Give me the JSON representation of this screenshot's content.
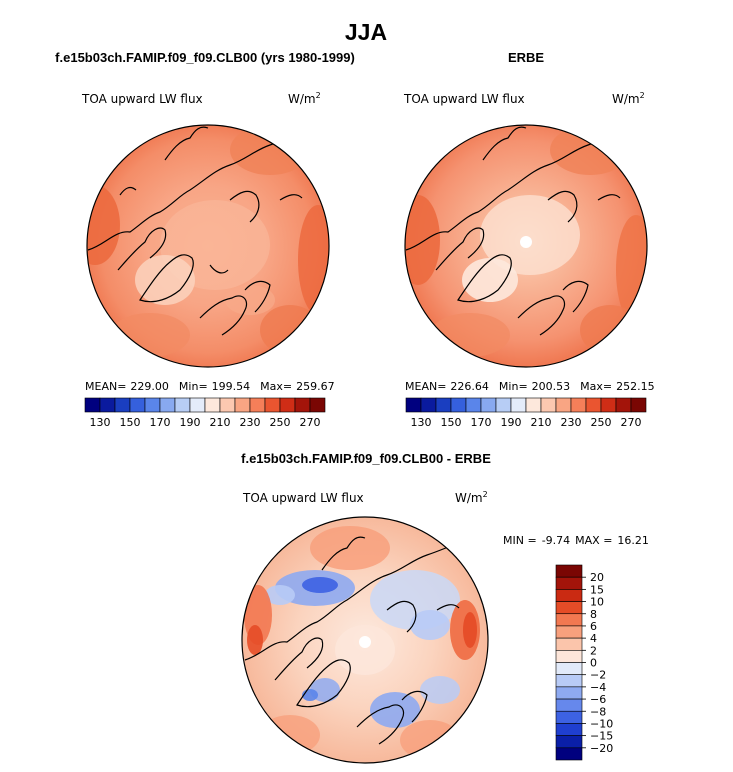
{
  "page_title": "JJA",
  "chart_data": [
    {
      "type": "heatmap",
      "projection": "north-polar-stereographic",
      "title": "f.e15b03ch.FAMIP.f09_f09.CLB00 (yrs 1980-1999)",
      "variable": "TOA upward LW flux",
      "units": "W/m",
      "units_exp": "2",
      "stats": {
        "mean_label": "MEAN=",
        "mean": "229.00",
        "min_label": "Min=",
        "min": "199.54",
        "max_label": "Max=",
        "max": "259.67"
      },
      "colorbar": {
        "orientation": "horizontal",
        "levels": [
          130,
          140,
          150,
          160,
          170,
          180,
          190,
          200,
          210,
          220,
          230,
          240,
          250,
          260,
          270
        ],
        "tick_labels": [
          "130",
          "150",
          "170",
          "190",
          "210",
          "230",
          "250",
          "270"
        ],
        "colors": [
          "#00007f",
          "#0a1a9e",
          "#1a3ec0",
          "#3560dd",
          "#5a85ea",
          "#88a9f0",
          "#b7cdf5",
          "#e4ecfa",
          "#fde8dc",
          "#fcc8b0",
          "#f9a583",
          "#f57f59",
          "#ea5530",
          "#cf2d16",
          "#a3140a",
          "#7a0603"
        ]
      },
      "field_summary": {
        "dominant_range": [
          220,
          250
        ],
        "pole_value": 215,
        "greenland_value": 205,
        "eurasia_pacific_value": 250
      }
    },
    {
      "type": "heatmap",
      "projection": "north-polar-stereographic",
      "title": "ERBE",
      "variable": "TOA upward LW flux",
      "units": "W/m",
      "units_exp": "2",
      "stats": {
        "mean_label": "MEAN=",
        "mean": "226.64",
        "min_label": "Min=",
        "min": "200.53",
        "max_label": "Max=",
        "max": "252.15"
      },
      "colorbar": {
        "orientation": "horizontal",
        "levels": [
          130,
          140,
          150,
          160,
          170,
          180,
          190,
          200,
          210,
          220,
          230,
          240,
          250,
          260,
          270
        ],
        "tick_labels": [
          "130",
          "150",
          "170",
          "190",
          "210",
          "230",
          "250",
          "270"
        ],
        "colors": [
          "#00007f",
          "#0a1a9e",
          "#1a3ec0",
          "#3560dd",
          "#5a85ea",
          "#88a9f0",
          "#b7cdf5",
          "#e4ecfa",
          "#fde8dc",
          "#fcc8b0",
          "#f9a583",
          "#f57f59",
          "#ea5530",
          "#cf2d16",
          "#a3140a",
          "#7a0603"
        ]
      },
      "field_summary": {
        "dominant_range": [
          220,
          250
        ],
        "pole_value": 210,
        "greenland_value": 205,
        "missing_pole": true
      }
    },
    {
      "type": "heatmap",
      "projection": "north-polar-stereographic",
      "title": "f.e15b03ch.FAMIP.f09_f09.CLB00 - ERBE",
      "variable": "TOA upward LW flux",
      "units": "W/m",
      "units_exp": "2",
      "stats": {
        "min_label": "MIN =",
        "min": "-9.74",
        "max_label": "MAX =",
        "max": "16.21"
      },
      "colorbar": {
        "orientation": "vertical",
        "levels": [
          -20,
          -15,
          -10,
          -8,
          -6,
          -4,
          -2,
          0,
          2,
          4,
          6,
          8,
          10,
          15,
          20
        ],
        "tick_labels": [
          "20",
          "15",
          "10",
          "8",
          "6",
          "4",
          "2",
          "0",
          "-2",
          "-4",
          "-6",
          "-8",
          "-10",
          "-15",
          "-20"
        ],
        "colors": [
          "#00007f",
          "#0a1fa8",
          "#1f3fd0",
          "#3d62e3",
          "#6688ec",
          "#8eaaf1",
          "#b8cbf6",
          "#e2eaf9",
          "#fde6da",
          "#fbc5ab",
          "#f8a07d",
          "#f27851",
          "#e54c27",
          "#ca2a12",
          "#a3140a",
          "#7a0603"
        ]
      },
      "field_summary": {
        "dominant_range": [
          -2,
          6
        ],
        "north_atlantic_min": -8,
        "bering_max": 16,
        "missing_pole": true
      }
    }
  ]
}
